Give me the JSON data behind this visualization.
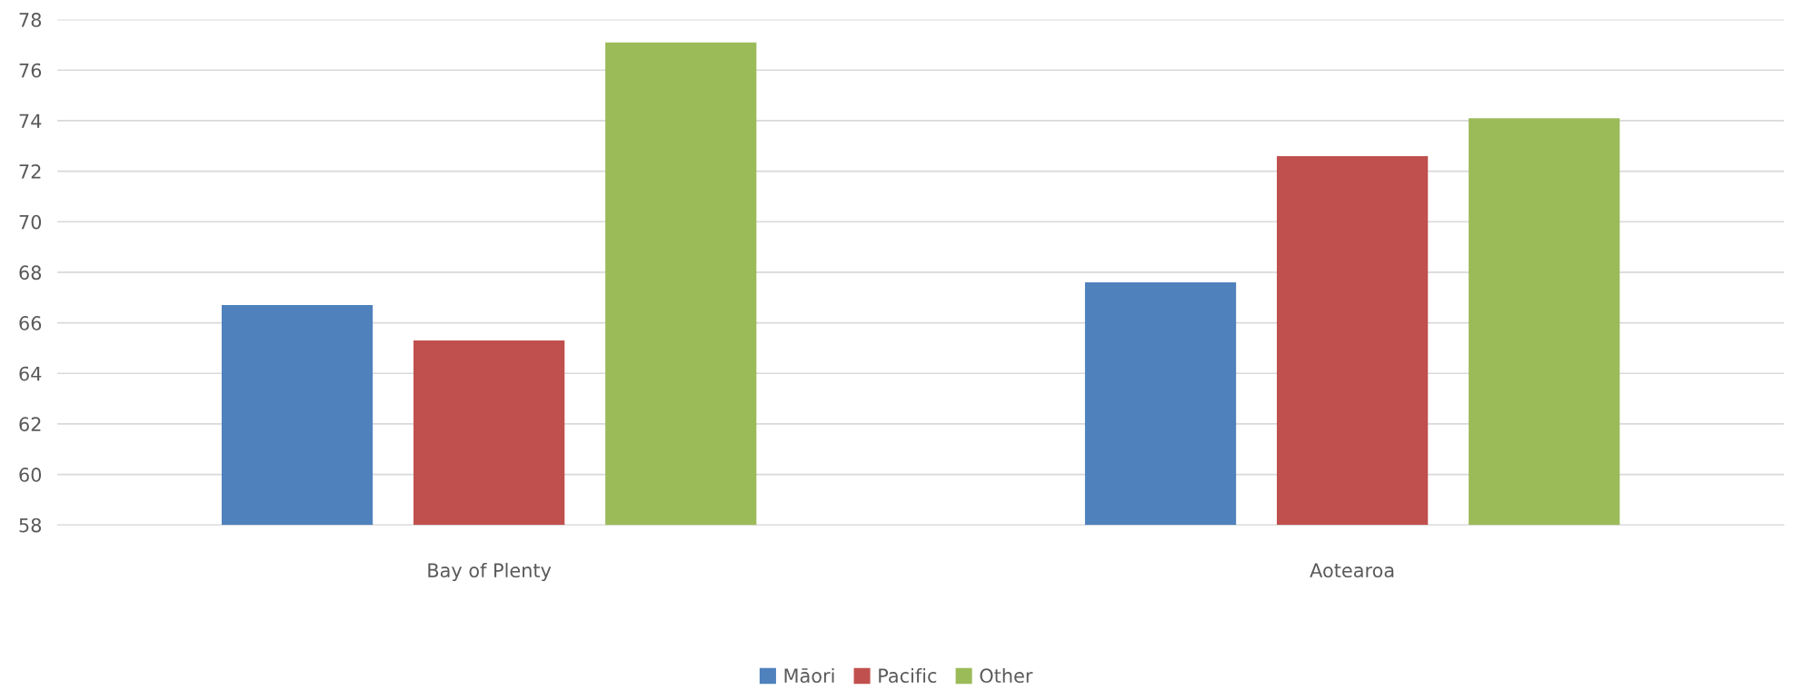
{
  "chart_data": {
    "type": "bar",
    "categories": [
      "Bay of Plenty",
      "Aotearoa"
    ],
    "series": [
      {
        "name": "Māori",
        "color": "#4f81bd",
        "values": [
          66.7,
          67.6
        ]
      },
      {
        "name": "Pacific",
        "color": "#c0504d",
        "values": [
          65.3,
          72.6
        ]
      },
      {
        "name": "Other",
        "color": "#9bbb59",
        "values": [
          77.1,
          74.1
        ]
      }
    ],
    "ylim": [
      58,
      78
    ],
    "yticks": [
      58,
      60,
      62,
      64,
      66,
      68,
      70,
      72,
      74,
      76,
      78
    ],
    "grid": "y",
    "legend": "bottom"
  }
}
